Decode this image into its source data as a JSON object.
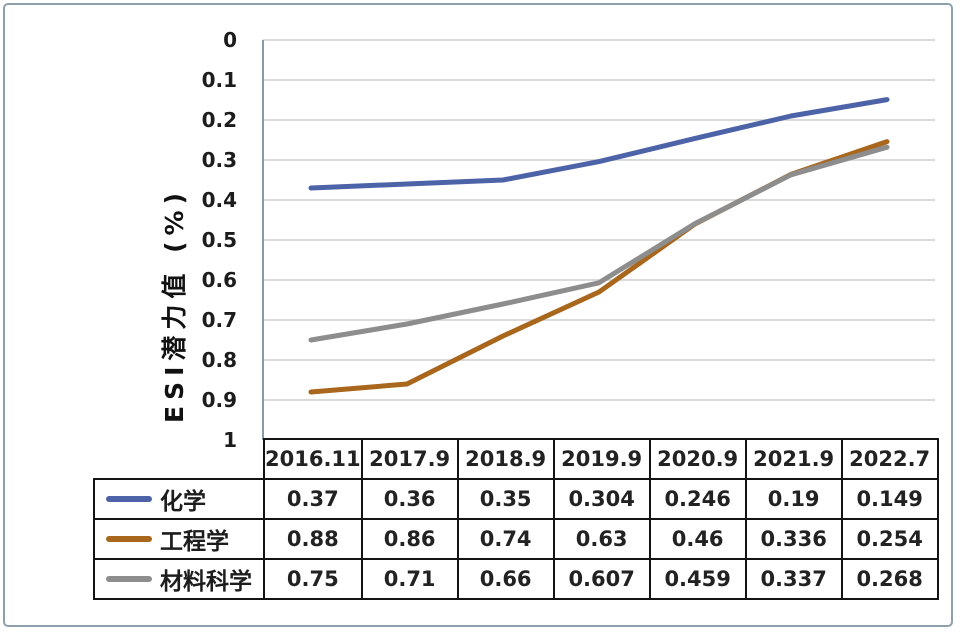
{
  "frame": {
    "border_color": "#8fa0ad"
  },
  "y_axis": {
    "title": "ESI潜力值 (%)"
  },
  "chart_data": {
    "type": "line",
    "title": "",
    "xlabel": "",
    "ylabel": "ESI潜力值 (%)",
    "categories": [
      "2016.11",
      "2017.9",
      "2018.9",
      "2019.9",
      "2020.9",
      "2021.9",
      "2022.7"
    ],
    "series": [
      {
        "name": "化学",
        "key": "chemistry",
        "color": "#4d63a8",
        "values": [
          0.37,
          0.36,
          0.35,
          0.304,
          0.246,
          0.19,
          0.149
        ]
      },
      {
        "name": "工程学",
        "key": "engineering",
        "color": "#a9671d",
        "values": [
          0.88,
          0.86,
          0.74,
          0.63,
          0.46,
          0.336,
          0.254
        ]
      },
      {
        "name": "材料科学",
        "key": "materials",
        "color": "#8d8d8d",
        "values": [
          0.75,
          0.71,
          0.66,
          0.607,
          0.459,
          0.337,
          0.268
        ]
      }
    ],
    "ylim": [
      0,
      1
    ],
    "y_ticks": [
      0,
      0.1,
      0.2,
      0.3,
      0.4,
      0.5,
      0.6,
      0.7,
      0.8,
      0.9,
      1
    ],
    "y_axis_inverted": true,
    "grid": true,
    "gridline_color": "#cdcdcd",
    "axis_line_color": "#8a99a6",
    "legend_position": "table-rows-left",
    "table_border_color": "#141414",
    "text_color": "#1d1d1d"
  }
}
